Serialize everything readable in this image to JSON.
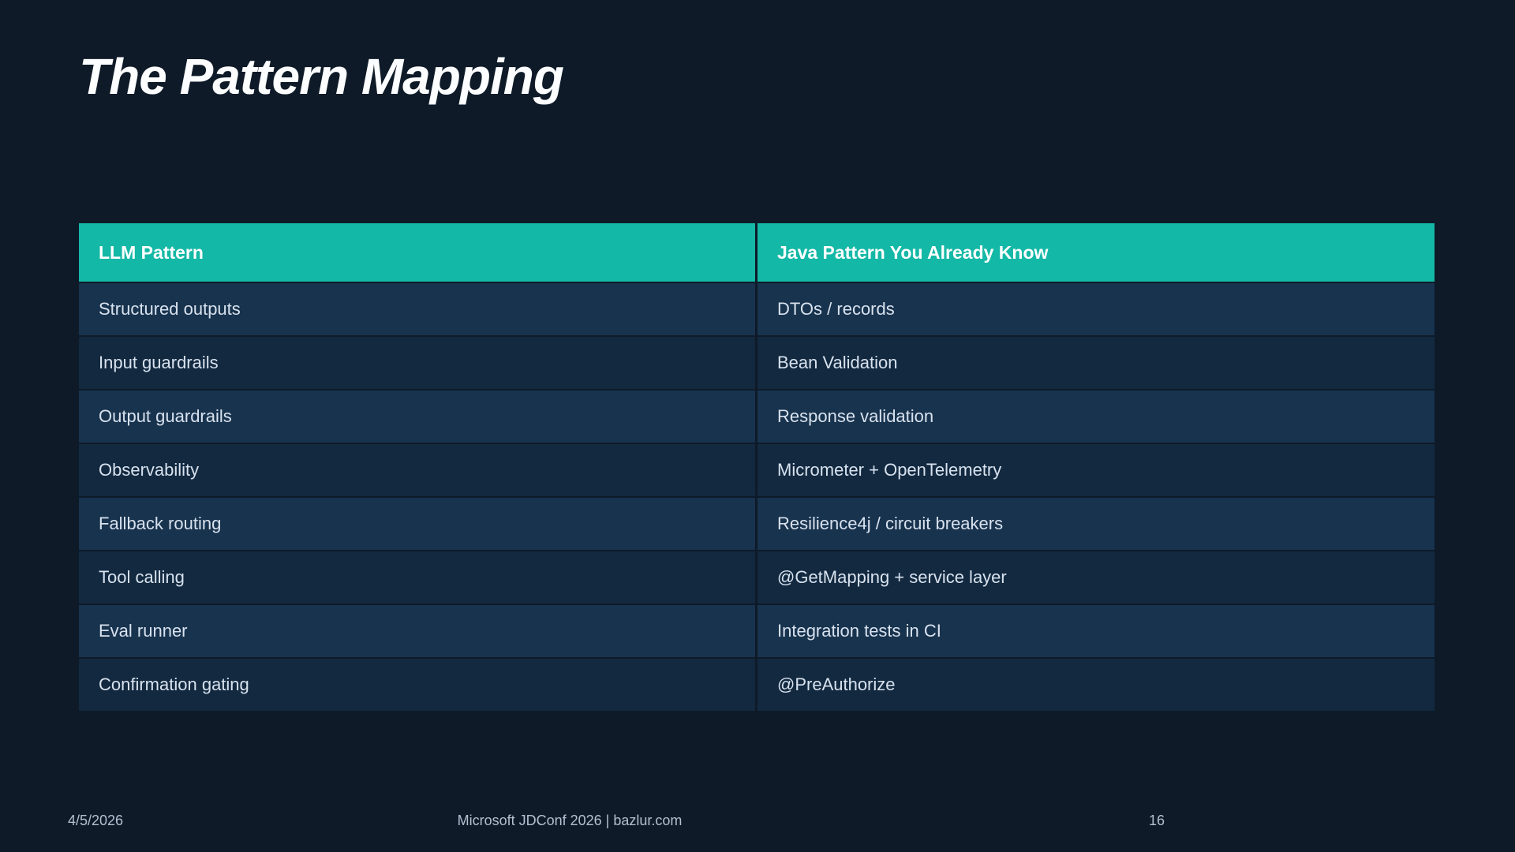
{
  "slide": {
    "title": "The Pattern Mapping"
  },
  "table": {
    "headers": [
      "LLM Pattern",
      "Java Pattern You Already Know"
    ],
    "rows": [
      {
        "llm": "Structured outputs",
        "java": "DTOs / records"
      },
      {
        "llm": "Input guardrails",
        "java": "Bean Validation"
      },
      {
        "llm": "Output guardrails",
        "java": "Response validation"
      },
      {
        "llm": "Observability",
        "java": "Micrometer + OpenTelemetry"
      },
      {
        "llm": "Fallback routing",
        "java": "Resilience4j / circuit breakers"
      },
      {
        "llm": "Tool calling",
        "java": "@GetMapping + service layer"
      },
      {
        "llm": "Eval runner",
        "java": "Integration tests in CI"
      },
      {
        "llm": "Confirmation gating",
        "java": "@PreAuthorize"
      }
    ]
  },
  "footer": {
    "date": "4/5/2026",
    "center": "Microsoft JDConf 2026 | bazlur.com",
    "page": "16"
  },
  "colors": {
    "background": "#0e1a28",
    "accent_teal": "#14b8a6",
    "row_light": "#18334e",
    "row_dark": "#122940",
    "cell_text": "#d8e2ee",
    "footer_text": "#b3c0cf",
    "header_text": "#ffffff"
  }
}
